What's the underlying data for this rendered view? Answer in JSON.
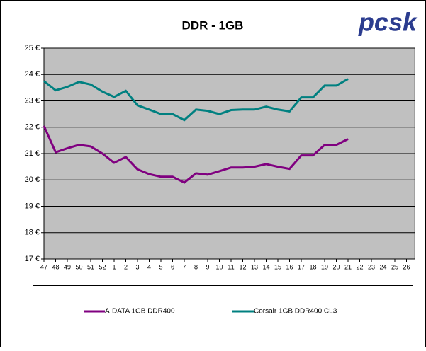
{
  "chart_data": {
    "type": "line",
    "title": "DDR - 1GB",
    "logo": "pcsk",
    "categories": [
      "47",
      "48",
      "49",
      "50",
      "51",
      "52",
      "1",
      "2",
      "3",
      "4",
      "5",
      "6",
      "7",
      "8",
      "9",
      "10",
      "11",
      "12",
      "13",
      "14",
      "15",
      "16",
      "17",
      "18",
      "19",
      "20",
      "21",
      "22",
      "23",
      "24",
      "25",
      "26"
    ],
    "series": [
      {
        "name": "A-DATA 1GB DDR400",
        "color": "#800080",
        "values": [
          22.05,
          21.05,
          21.2,
          21.33,
          21.27,
          21.0,
          20.65,
          20.87,
          20.4,
          20.22,
          20.12,
          20.12,
          19.9,
          20.25,
          20.2,
          20.33,
          20.47,
          20.47,
          20.5,
          20.6,
          20.5,
          20.42,
          20.93,
          20.93,
          21.33,
          21.33,
          21.55,
          null,
          null,
          null,
          null,
          null
        ]
      },
      {
        "name": "Corsair 1GB DDR400 CL3",
        "color": "#008080",
        "values": [
          23.75,
          23.4,
          23.53,
          23.72,
          23.62,
          23.35,
          23.15,
          23.38,
          22.83,
          22.67,
          22.5,
          22.5,
          22.27,
          22.67,
          22.62,
          22.5,
          22.65,
          22.67,
          22.67,
          22.78,
          22.67,
          22.6,
          23.13,
          23.13,
          23.58,
          23.58,
          23.83,
          null,
          null,
          null,
          null,
          null
        ]
      }
    ],
    "ylim": [
      17,
      25
    ],
    "yticks": [
      {
        "value": 17,
        "label": "17 €"
      },
      {
        "value": 18,
        "label": "18 €"
      },
      {
        "value": 19,
        "label": "19 €"
      },
      {
        "value": 20,
        "label": "20 €"
      },
      {
        "value": 21,
        "label": "21 €"
      },
      {
        "value": 22,
        "label": "22 €"
      },
      {
        "value": 23,
        "label": "23 €"
      },
      {
        "value": 24,
        "label": "24 €"
      },
      {
        "value": 25,
        "label": "25 €"
      }
    ],
    "grid": true,
    "plot_background": "#c0c0c0",
    "legend": "bottom"
  }
}
